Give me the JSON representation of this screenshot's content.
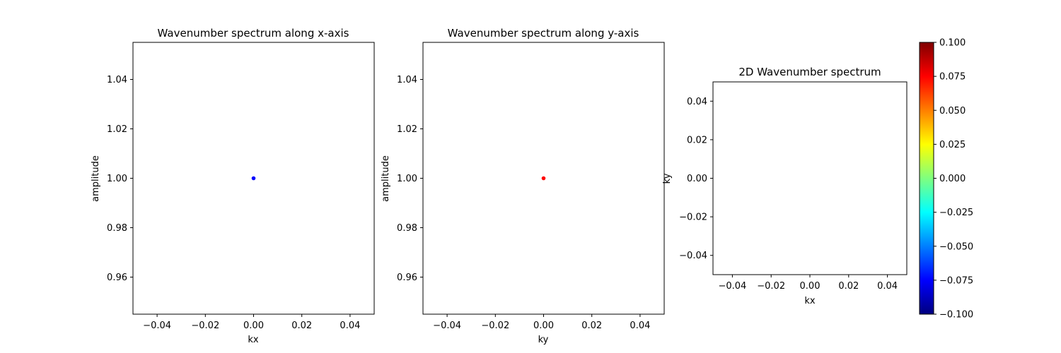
{
  "chart_data": [
    {
      "type": "scatter",
      "title": "Wavenumber spectrum along x-axis",
      "xlabel": "kx",
      "ylabel": "amplitude",
      "xlim": [
        -0.05,
        0.05
      ],
      "ylim": [
        0.945,
        1.055
      ],
      "xticks": [
        -0.04,
        -0.02,
        0.0,
        0.02,
        0.04
      ],
      "xtick_labels": [
        "−0.04",
        "−0.02",
        "0.00",
        "0.02",
        "0.04"
      ],
      "yticks": [
        0.96,
        0.98,
        1.0,
        1.02,
        1.04
      ],
      "ytick_labels": [
        "0.96",
        "0.98",
        "1.00",
        "1.02",
        "1.04"
      ],
      "grid": false,
      "points": [
        {
          "x": 0.0,
          "y": 1.0
        }
      ],
      "color": "#0000ff"
    },
    {
      "type": "scatter",
      "title": "Wavenumber spectrum along y-axis",
      "xlabel": "ky",
      "ylabel": "amplitude",
      "xlim": [
        -0.05,
        0.05
      ],
      "ylim": [
        0.945,
        1.055
      ],
      "xticks": [
        -0.04,
        -0.02,
        0.0,
        0.02,
        0.04
      ],
      "xtick_labels": [
        "−0.04",
        "−0.02",
        "0.00",
        "0.02",
        "0.04"
      ],
      "yticks": [
        0.96,
        0.98,
        1.0,
        1.02,
        1.04
      ],
      "ytick_labels": [
        "0.96",
        "0.98",
        "1.00",
        "1.02",
        "1.04"
      ],
      "grid": false,
      "points": [
        {
          "x": 0.0,
          "y": 1.0
        }
      ],
      "color": "#ff0000"
    },
    {
      "type": "heatmap",
      "title": "2D Wavenumber spectrum",
      "xlabel": "kx",
      "ylabel": "ky",
      "xlim": [
        -0.05,
        0.05
      ],
      "ylim": [
        -0.05,
        0.05
      ],
      "xticks": [
        -0.04,
        -0.02,
        0.0,
        0.02,
        0.04
      ],
      "xtick_labels": [
        "−0.04",
        "−0.02",
        "0.00",
        "0.02",
        "0.04"
      ],
      "yticks": [
        -0.04,
        -0.02,
        0.0,
        0.02,
        0.04
      ],
      "ytick_labels": [
        "−0.04",
        "−0.02",
        "0.00",
        "0.02",
        "0.04"
      ],
      "grid": false,
      "values": [],
      "colorbar": {
        "colormap": "jet",
        "range": [
          -0.1,
          0.1
        ],
        "ticks": [
          -0.1,
          -0.075,
          -0.05,
          -0.025,
          0.0,
          0.025,
          0.05,
          0.075,
          0.1
        ],
        "tick_labels": [
          "−0.100",
          "−0.075",
          "−0.050",
          "−0.025",
          "0.000",
          "0.025",
          "0.050",
          "0.075",
          "0.100"
        ],
        "gradient_stops": [
          "#00007f",
          "#0000ff",
          "#007fff",
          "#00ffff",
          "#7fff7f",
          "#ffff00",
          "#ff7f00",
          "#ff0000",
          "#7f0000"
        ]
      }
    }
  ]
}
